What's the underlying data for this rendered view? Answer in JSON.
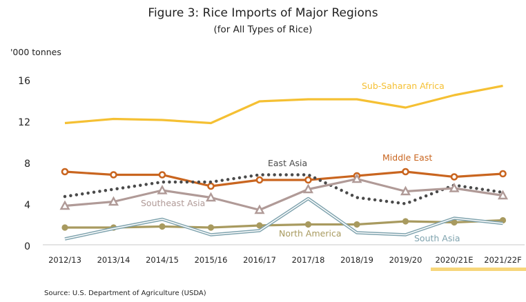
{
  "chart_data": {
    "type": "line",
    "title": "Figure 3: Rice Imports of Major Regions",
    "subtitle": "(for All Types of Rice)",
    "ylabel": "'000 tonnes",
    "xlabel": "",
    "ylim": [
      0,
      16
    ],
    "yticks": [
      "0",
      "4",
      "8",
      "12",
      "16"
    ],
    "categories": [
      "2012/13",
      "2013/14",
      "2014/15",
      "2015/16",
      "2016/17",
      "2017/18",
      "2018/19",
      "2019/20",
      "2020/21E",
      "2021/22F"
    ],
    "highlighted_categories": [
      "2020/21E",
      "2021/22F"
    ],
    "highlight_color": "#f7d67a",
    "grid": false,
    "series": [
      {
        "name": "Sub-Saharan Africa",
        "values": [
          11.9,
          12.3,
          12.2,
          11.9,
          14.0,
          14.2,
          14.2,
          13.4,
          14.6,
          15.5
        ],
        "color": "#f5c033",
        "style": "solid",
        "marker": "none"
      },
      {
        "name": "Middle East",
        "values": [
          7.2,
          6.9,
          6.9,
          5.8,
          6.4,
          6.4,
          6.8,
          7.2,
          6.7,
          7.0
        ],
        "color": "#c9651f",
        "style": "solid",
        "marker": "circle"
      },
      {
        "name": "East Asia",
        "values": [
          4.8,
          5.5,
          6.2,
          6.2,
          6.9,
          6.9,
          4.7,
          4.1,
          5.9,
          5.2
        ],
        "color": "#4a4a4a",
        "style": "dotted",
        "marker": "none"
      },
      {
        "name": "Southeast Asia",
        "values": [
          3.9,
          4.3,
          5.4,
          4.7,
          3.5,
          5.5,
          6.5,
          5.3,
          5.6,
          4.9
        ],
        "color": "#b09a97",
        "style": "solid",
        "marker": "triangle"
      },
      {
        "name": "North America",
        "values": [
          1.8,
          1.8,
          1.9,
          1.8,
          2.0,
          2.1,
          2.1,
          2.4,
          2.3,
          2.5
        ],
        "color": "#a89a5f",
        "style": "solid",
        "marker": "filled-circle"
      },
      {
        "name": "South Asia",
        "values": [
          0.7,
          1.7,
          2.6,
          1.1,
          1.5,
          4.6,
          1.3,
          1.1,
          2.7,
          2.2
        ],
        "color": "#7fa3ae",
        "style": "double",
        "marker": "none"
      }
    ],
    "source": "Source: U.S. Department of Agriculture (USDA)"
  }
}
